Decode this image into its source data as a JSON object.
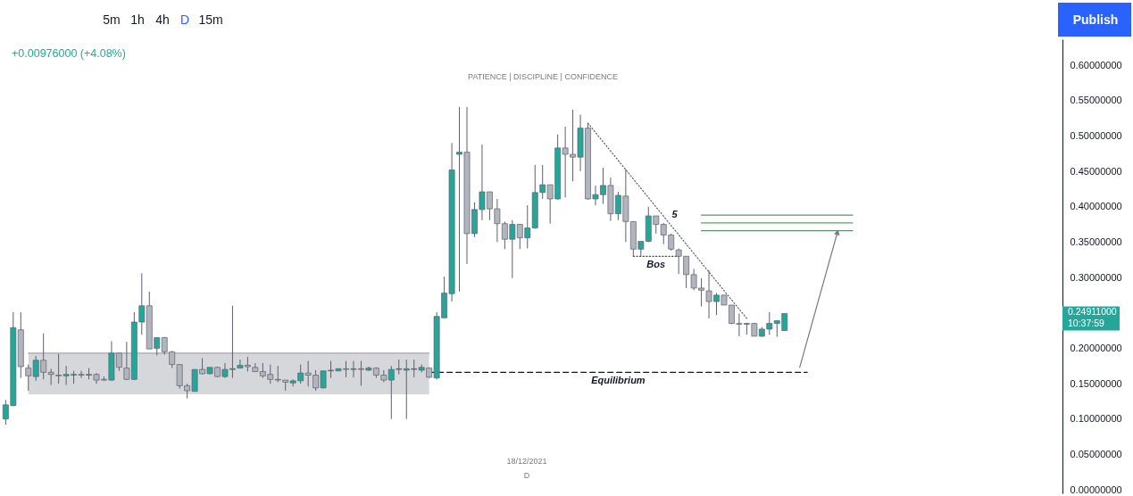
{
  "chart_data": {
    "type": "candlestick",
    "subtitle": "PATIENCE  |  DISCIPLINE  |  CONFIDENCE",
    "categories": [
      null,
      null,
      null,
      null,
      null,
      null,
      null,
      null,
      null,
      null,
      null,
      null,
      null,
      null,
      null,
      null,
      null,
      null,
      null,
      null,
      null,
      null,
      null,
      null,
      null,
      null,
      null,
      null,
      null,
      null,
      null,
      null,
      null,
      null,
      null,
      null,
      null,
      null,
      null,
      null,
      null,
      null,
      null,
      null,
      null,
      null,
      null,
      null,
      null,
      null,
      null,
      null,
      null,
      null,
      null,
      null,
      null,
      null,
      null,
      null,
      null,
      null,
      null,
      null,
      null,
      null,
      null,
      null,
      null,
      null,
      null,
      null,
      null,
      null,
      null,
      null,
      null,
      null,
      null,
      null,
      null,
      null,
      null,
      null,
      null,
      null,
      null,
      null,
      null,
      null,
      null,
      null,
      null,
      null,
      null,
      null,
      null,
      null,
      null,
      null,
      null,
      null,
      null,
      null,
      null,
      null,
      null,
      null,
      null,
      null,
      null,
      null,
      null,
      null,
      null,
      null,
      null,
      null,
      null,
      null,
      null,
      null,
      null,
      null,
      null,
      null,
      null,
      null,
      null,
      null,
      null,
      null,
      null,
      null,
      null,
      null,
      null,
      null,
      null,
      null
    ],
    "ohlc": [
      [
        0.1,
        0.127,
        0.092,
        0.12
      ],
      [
        0.119,
        0.251,
        0.118,
        0.229
      ],
      [
        0.226,
        0.251,
        0.158,
        0.174
      ],
      [
        0.172,
        0.177,
        0.14,
        0.161
      ],
      [
        0.16,
        0.189,
        0.154,
        0.183
      ],
      [
        0.183,
        0.221,
        0.156,
        0.166
      ],
      [
        0.166,
        0.171,
        0.148,
        0.163
      ],
      [
        0.162,
        0.192,
        0.15,
        0.161
      ],
      [
        0.161,
        0.175,
        0.148,
        0.163
      ],
      [
        0.162,
        0.168,
        0.15,
        0.163
      ],
      [
        0.163,
        0.168,
        0.158,
        0.162
      ],
      [
        0.162,
        0.172,
        0.156,
        0.163
      ],
      [
        0.163,
        0.165,
        0.15,
        0.155
      ],
      [
        0.156,
        0.16,
        0.154,
        0.155
      ],
      [
        0.155,
        0.21,
        0.154,
        0.193
      ],
      [
        0.193,
        0.193,
        0.168,
        0.173
      ],
      [
        0.172,
        0.209,
        0.155,
        0.156
      ],
      [
        0.156,
        0.251,
        0.155,
        0.237
      ],
      [
        0.237,
        0.306,
        0.219,
        0.26
      ],
      [
        0.26,
        0.28,
        0.199,
        0.199
      ],
      [
        0.2,
        0.215,
        0.19,
        0.215
      ],
      [
        0.215,
        0.216,
        0.191,
        0.195
      ],
      [
        0.195,
        0.196,
        0.172,
        0.177
      ],
      [
        0.177,
        0.177,
        0.143,
        0.147
      ],
      [
        0.147,
        0.15,
        0.129,
        0.14
      ],
      [
        0.139,
        0.17,
        0.139,
        0.17
      ],
      [
        0.17,
        0.186,
        0.163,
        0.164
      ],
      [
        0.164,
        0.173,
        0.163,
        0.173
      ],
      [
        0.173,
        0.174,
        0.159,
        0.16
      ],
      [
        0.16,
        0.179,
        0.158,
        0.17
      ],
      [
        0.17,
        0.26,
        0.158,
        0.171
      ],
      [
        0.172,
        0.184,
        0.172,
        0.176
      ],
      [
        0.176,
        0.188,
        0.167,
        0.174
      ],
      [
        0.173,
        0.179,
        0.167,
        0.167
      ],
      [
        0.167,
        0.179,
        0.158,
        0.161
      ],
      [
        0.163,
        0.177,
        0.15,
        0.156
      ],
      [
        0.156,
        0.175,
        0.152,
        0.155
      ],
      [
        0.155,
        0.155,
        0.14,
        0.152
      ],
      [
        0.151,
        0.156,
        0.146,
        0.154
      ],
      [
        0.154,
        0.177,
        0.15,
        0.165
      ],
      [
        0.165,
        0.182,
        0.146,
        0.162
      ],
      [
        0.162,
        0.169,
        0.14,
        0.144
      ],
      [
        0.144,
        0.168,
        0.143,
        0.168
      ],
      [
        0.168,
        0.182,
        0.158,
        0.169
      ],
      [
        0.168,
        0.172,
        0.168,
        0.171
      ],
      [
        0.171,
        0.182,
        0.159,
        0.17
      ],
      [
        0.17,
        0.182,
        0.159,
        0.171
      ],
      [
        0.171,
        0.182,
        0.147,
        0.17
      ],
      [
        0.169,
        0.174,
        0.168,
        0.172
      ],
      [
        0.172,
        0.173,
        0.158,
        0.162
      ],
      [
        0.162,
        0.169,
        0.152,
        0.155
      ],
      [
        0.155,
        0.175,
        0.1,
        0.17
      ],
      [
        0.17,
        0.184,
        0.163,
        0.171
      ],
      [
        0.169,
        0.184,
        0.1,
        0.171
      ],
      [
        0.17,
        0.184,
        0.159,
        0.171
      ],
      [
        0.169,
        0.177,
        0.166,
        0.173
      ],
      [
        0.172,
        0.173,
        0.158,
        0.159
      ],
      [
        0.158,
        0.251,
        0.156,
        0.245
      ],
      [
        0.243,
        0.301,
        0.243,
        0.278
      ],
      [
        0.277,
        0.49,
        0.266,
        0.452
      ],
      [
        0.474,
        0.541,
        0.28,
        0.477
      ],
      [
        0.477,
        0.541,
        0.319,
        0.362
      ],
      [
        0.362,
        0.406,
        0.357,
        0.396
      ],
      [
        0.396,
        0.488,
        0.381,
        0.421
      ],
      [
        0.421,
        0.421,
        0.381,
        0.397
      ],
      [
        0.397,
        0.411,
        0.35,
        0.376
      ],
      [
        0.376,
        0.379,
        0.34,
        0.354
      ],
      [
        0.354,
        0.381,
        0.299,
        0.375
      ],
      [
        0.375,
        0.375,
        0.34,
        0.356
      ],
      [
        0.356,
        0.402,
        0.341,
        0.37
      ],
      [
        0.37,
        0.459,
        0.369,
        0.42
      ],
      [
        0.42,
        0.459,
        0.411,
        0.431
      ],
      [
        0.431,
        0.431,
        0.376,
        0.411
      ],
      [
        0.411,
        0.502,
        0.41,
        0.483
      ],
      [
        0.483,
        0.513,
        0.413,
        0.474
      ],
      [
        0.474,
        0.537,
        0.436,
        0.47
      ],
      [
        0.47,
        0.53,
        0.45,
        0.511
      ],
      [
        0.511,
        0.518,
        0.41,
        0.411
      ],
      [
        0.411,
        0.43,
        0.402,
        0.417
      ],
      [
        0.417,
        0.455,
        0.404,
        0.43
      ],
      [
        0.43,
        0.441,
        0.38,
        0.39
      ],
      [
        0.39,
        0.421,
        0.381,
        0.416
      ],
      [
        0.415,
        0.453,
        0.35,
        0.379
      ],
      [
        0.379,
        0.379,
        0.33,
        0.34
      ],
      [
        0.34,
        0.351,
        0.33,
        0.351
      ],
      [
        0.351,
        0.4,
        0.35,
        0.387
      ],
      [
        0.387,
        0.387,
        0.362,
        0.375
      ],
      [
        0.375,
        0.377,
        0.347,
        0.36
      ],
      [
        0.36,
        0.362,
        0.338,
        0.34
      ],
      [
        0.339,
        0.341,
        0.305,
        0.33
      ],
      [
        0.33,
        0.33,
        0.285,
        0.304
      ],
      [
        0.304,
        0.312,
        0.282,
        0.285
      ],
      [
        0.285,
        0.299,
        0.259,
        0.282
      ],
      [
        0.281,
        0.31,
        0.242,
        0.266
      ],
      [
        0.266,
        0.278,
        0.247,
        0.275
      ],
      [
        0.275,
        0.275,
        0.261,
        0.261
      ],
      [
        0.261,
        0.261,
        0.234,
        0.235
      ],
      [
        0.235,
        0.249,
        0.217,
        0.234
      ],
      [
        0.234,
        0.236,
        0.219,
        0.235
      ],
      [
        0.235,
        0.236,
        0.217,
        0.217
      ],
      [
        0.217,
        0.23,
        0.216,
        0.227
      ],
      [
        0.227,
        0.251,
        0.219,
        0.235
      ],
      [
        0.235,
        0.239,
        0.216,
        0.239
      ],
      [
        0.225,
        0.24911,
        0.225,
        0.24911
      ],
      null,
      null,
      null,
      null,
      null,
      null,
      null,
      null,
      null,
      null,
      null,
      null,
      null,
      null,
      null,
      null,
      null,
      null,
      null,
      null,
      null,
      null,
      null,
      null,
      null,
      null,
      null,
      null,
      null,
      null,
      null,
      null,
      null,
      null,
      null,
      null
    ],
    "colors": [
      "#26a69a",
      "#26a69a",
      "#b2b5be",
      "#b2b5be",
      "#26a69a",
      "#b2b5be",
      "#b2b5be",
      "#b2b5be",
      "#26a69a",
      "#26a69a",
      "#b2b5be",
      "#26a69a",
      "#b2b5be",
      "#b2b5be",
      "#26a69a",
      "#b2b5be",
      "#b2b5be",
      "#26a69a",
      "#26a69a",
      "#b2b5be",
      "#26a69a",
      "#b2b5be",
      "#b2b5be",
      "#b2b5be",
      "#b2b5be",
      "#26a69a",
      "#b2b5be",
      "#26a69a",
      "#b2b5be",
      "#26a69a",
      "#26a69a",
      "#26a69a",
      "#b2b5be",
      "#b2b5be",
      "#b2b5be",
      "#b2b5be",
      "#b2b5be",
      "#b2b5be",
      "#26a69a",
      "#26a69a",
      "#b2b5be",
      "#b2b5be",
      "#26a69a",
      "#26a69a",
      "#26a69a",
      "#b2b5be",
      "#26a69a",
      "#b2b5be",
      "#26a69a",
      "#b2b5be",
      "#b2b5be",
      "#26a69a",
      "#26a69a",
      "#26a69a",
      "#26a69a",
      "#26a69a",
      "#b2b5be",
      "#26a69a",
      "#26a69a",
      "#26a69a",
      "#26a69a",
      "#b2b5be",
      "#26a69a",
      "#26a69a",
      "#b2b5be",
      "#b2b5be",
      "#b2b5be",
      "#26a69a",
      "#b2b5be",
      "#26a69a",
      "#26a69a",
      "#26a69a",
      "#b2b5be",
      "#26a69a",
      "#b2b5be",
      "#b2b5be",
      "#26a69a",
      "#b2b5be",
      "#26a69a",
      "#26a69a",
      "#b2b5be",
      "#26a69a",
      "#b2b5be",
      "#b2b5be",
      "#26a69a",
      "#26a69a",
      "#b2b5be",
      "#b2b5be",
      "#b2b5be",
      "#b2b5be",
      "#b2b5be",
      "#b2b5be",
      "#b2b5be",
      "#b2b5be",
      "#26a69a",
      "#b2b5be",
      "#b2b5be",
      "#b2b5be",
      "#26a69a",
      "#b2b5be",
      "#26a69a",
      "#26a69a",
      "#26a69a",
      "#26a69a",
      null,
      null,
      null,
      null,
      null,
      null,
      null,
      null,
      null,
      null,
      null,
      null,
      null,
      null,
      null,
      null,
      null,
      null,
      null,
      null,
      null,
      null,
      null,
      null,
      null,
      null,
      null,
      null,
      null,
      null,
      null,
      null,
      null,
      null,
      null,
      null
    ],
    "color": "#5d606b",
    "ylim": [
      -0.005,
      0.6366
    ],
    "yticks": [
      {
        "value": 0.6,
        "label": "0.60000000"
      },
      {
        "value": 0.55,
        "label": "0.55000000"
      },
      {
        "value": 0.5,
        "label": "0.50000000"
      },
      {
        "value": 0.45,
        "label": "0.45000000"
      },
      {
        "value": 0.4,
        "label": "0.40000000"
      },
      {
        "value": 0.35,
        "label": "0.35000000"
      },
      {
        "value": 0.3,
        "label": "0.30000000"
      },
      {
        "value": 0.2,
        "label": "0.20000000"
      },
      {
        "value": 0.15,
        "label": "0.15000000"
      },
      {
        "value": 0.1,
        "label": "0.10000000"
      },
      {
        "value": 0.05,
        "label": "0.05000000"
      },
      {
        "value": 0,
        "label": "0.00000000"
      }
    ],
    "tick_labels": "y",
    "series": [
      {
        "type": "line",
        "color": "#a3a6af",
        "line_style": "solid",
        "values": [
          null,
          null,
          null,
          0.193,
          null,
          null,
          null,
          null,
          null,
          null,
          null,
          null,
          null,
          null,
          null,
          null,
          null,
          null,
          null,
          null,
          null,
          null,
          null,
          null,
          null,
          null,
          null,
          null,
          null,
          null,
          null,
          null,
          null,
          null,
          null,
          null,
          null,
          null,
          null,
          null,
          null,
          null,
          null,
          null,
          null,
          null,
          null,
          null,
          null,
          null,
          null,
          null,
          null,
          null,
          null,
          null,
          0.193,
          null,
          null,
          null,
          null,
          null,
          null,
          null,
          null,
          null,
          null,
          null,
          null,
          null,
          null,
          null,
          null,
          null,
          null,
          null,
          null,
          null,
          null,
          null,
          null,
          null,
          null,
          null,
          null,
          null,
          null,
          null,
          null,
          null,
          null,
          null,
          null,
          null,
          null,
          null,
          null,
          null,
          null,
          null,
          null,
          null,
          null,
          null,
          null,
          null,
          null,
          null,
          null,
          null,
          null,
          null,
          null,
          null,
          null,
          null,
          null,
          null,
          null,
          null,
          null,
          null,
          null,
          null,
          null,
          null,
          null,
          null,
          null,
          null,
          null,
          null,
          null,
          null,
          null,
          null,
          null,
          null,
          null,
          null
        ],
        "upper": [
          null,
          null,
          null,
          0.193,
          null,
          null,
          null,
          null,
          null,
          null,
          null,
          null,
          null,
          null,
          null,
          null,
          null,
          null,
          null,
          null,
          null,
          null,
          null,
          null,
          null,
          null,
          null,
          null,
          null,
          null,
          null,
          null,
          null,
          null,
          null,
          null,
          null,
          null,
          null,
          null,
          null,
          null,
          null,
          null,
          null,
          null,
          null,
          null,
          null,
          null,
          null,
          null,
          null,
          null,
          null,
          null,
          0.193,
          null,
          null,
          null,
          null,
          null,
          null,
          null,
          null,
          null,
          null,
          null,
          null,
          null,
          null,
          null,
          null,
          null,
          null,
          null,
          null,
          null,
          null,
          null,
          null,
          null,
          null,
          null,
          null,
          null,
          null,
          null,
          null,
          null,
          null,
          null,
          null,
          null,
          null,
          null,
          null,
          null,
          null,
          null,
          null,
          null,
          null,
          null,
          null,
          null,
          null,
          null,
          null,
          null,
          null,
          null,
          null,
          null,
          null,
          null,
          null,
          null,
          null,
          null,
          null,
          null,
          null,
          null,
          null,
          null,
          null,
          null,
          null,
          null,
          null,
          null,
          null,
          null,
          null,
          null,
          null,
          null,
          null,
          null
        ],
        "lower": [
          null,
          null,
          null,
          0.135,
          null,
          null,
          null,
          null,
          null,
          null,
          null,
          null,
          null,
          null,
          null,
          null,
          null,
          null,
          null,
          null,
          null,
          null,
          null,
          null,
          null,
          null,
          null,
          null,
          null,
          null,
          null,
          null,
          null,
          null,
          null,
          null,
          null,
          null,
          null,
          null,
          null,
          null,
          null,
          null,
          null,
          null,
          null,
          null,
          null,
          null,
          null,
          null,
          null,
          null,
          null,
          null,
          0.135,
          null,
          null,
          null,
          null,
          null,
          null,
          null,
          null,
          null,
          null,
          null,
          null,
          null,
          null,
          null,
          null,
          null,
          null,
          null,
          null,
          null,
          null,
          null,
          null,
          null,
          null,
          null,
          null,
          null,
          null,
          null,
          null,
          null,
          null,
          null,
          null,
          null,
          null,
          null,
          null,
          null,
          null,
          null,
          null,
          null,
          null,
          null,
          null,
          null,
          null,
          null,
          null,
          null,
          null,
          null,
          null,
          null,
          null,
          null,
          null,
          null,
          null,
          null,
          null,
          null,
          null,
          null,
          null,
          null,
          null,
          null,
          null,
          null,
          null,
          null,
          null,
          null,
          null,
          null,
          null,
          null,
          null,
          null
        ]
      },
      {
        "type": "line",
        "name": "Equilibrium",
        "color": "#131722",
        "line_style": "dashed",
        "values": [
          null,
          null,
          null,
          null,
          null,
          null,
          null,
          null,
          null,
          null,
          null,
          null,
          null,
          null,
          null,
          null,
          null,
          null,
          null,
          null,
          null,
          null,
          null,
          null,
          null,
          null,
          null,
          null,
          null,
          null,
          null,
          null,
          null,
          null,
          null,
          null,
          null,
          null,
          null,
          null,
          null,
          null,
          null,
          null,
          null,
          null,
          null,
          null,
          null,
          null,
          null,
          null,
          null,
          null,
          null,
          null,
          0.166,
          null,
          null,
          null,
          null,
          null,
          null,
          null,
          null,
          null,
          null,
          null,
          null,
          null,
          null,
          null,
          null,
          null,
          null,
          null,
          null,
          null,
          null,
          null,
          null,
          null,
          null,
          null,
          null,
          null,
          null,
          null,
          null,
          null,
          null,
          null,
          null,
          null,
          null,
          null,
          null,
          null,
          null,
          null,
          null,
          null,
          null,
          null,
          null,
          null,
          0.166,
          null,
          null,
          null,
          null,
          null,
          null,
          null,
          null,
          null,
          null,
          null,
          null,
          null,
          null,
          null,
          null,
          null,
          null,
          null,
          null,
          null,
          null,
          null,
          null,
          null,
          null,
          null,
          null,
          null,
          null,
          null,
          null,
          null
        ]
      },
      {
        "type": "line",
        "name": "5",
        "color": "#5d606b",
        "line_style": "dotted",
        "values": [
          null,
          null,
          null,
          null,
          null,
          null,
          null,
          null,
          null,
          null,
          null,
          null,
          null,
          null,
          null,
          null,
          null,
          null,
          null,
          null,
          null,
          null,
          null,
          null,
          null,
          null,
          null,
          null,
          null,
          null,
          null,
          null,
          null,
          null,
          null,
          null,
          null,
          null,
          null,
          null,
          null,
          null,
          null,
          null,
          null,
          null,
          null,
          null,
          null,
          null,
          null,
          null,
          null,
          null,
          null,
          null,
          null,
          null,
          null,
          null,
          null,
          null,
          null,
          null,
          null,
          null,
          null,
          null,
          null,
          null,
          null,
          null,
          null,
          null,
          null,
          null,
          null,
          0.518,
          null,
          null,
          null,
          null,
          null,
          null,
          null,
          null,
          null,
          null,
          null,
          null,
          null,
          null,
          null,
          null,
          null,
          null,
          null,
          null,
          0.242,
          null,
          null,
          null,
          null,
          null,
          null,
          null,
          null,
          null,
          null,
          null,
          null,
          null,
          null,
          null,
          null,
          null,
          null,
          null,
          null,
          null,
          null,
          null,
          null,
          null,
          null,
          null,
          null,
          null,
          null,
          null,
          null,
          null,
          null,
          null,
          null,
          null,
          null,
          null,
          null,
          null
        ]
      },
      {
        "type": "line",
        "name": "Bos",
        "color": "#131722",
        "line_style": "dotted",
        "values": [
          null,
          null,
          null,
          null,
          null,
          null,
          null,
          null,
          null,
          null,
          null,
          null,
          null,
          null,
          null,
          null,
          null,
          null,
          null,
          null,
          null,
          null,
          null,
          null,
          null,
          null,
          null,
          null,
          null,
          null,
          null,
          null,
          null,
          null,
          null,
          null,
          null,
          null,
          null,
          null,
          null,
          null,
          null,
          null,
          null,
          null,
          null,
          null,
          null,
          null,
          null,
          null,
          null,
          null,
          null,
          null,
          null,
          null,
          null,
          null,
          null,
          null,
          null,
          null,
          null,
          null,
          null,
          null,
          null,
          null,
          null,
          null,
          null,
          null,
          null,
          null,
          null,
          null,
          null,
          null,
          null,
          null,
          null,
          0.33,
          null,
          null,
          null,
          null,
          null,
          0.33,
          null,
          null,
          null,
          null,
          null,
          null,
          null,
          null,
          null,
          null,
          null,
          null,
          null,
          null,
          null,
          null,
          null,
          null,
          null,
          null,
          null,
          null,
          null,
          null,
          null,
          null,
          null,
          null,
          null,
          null,
          null,
          null,
          null,
          null,
          null,
          null,
          null,
          null,
          null,
          null,
          null,
          null,
          null,
          null,
          null,
          null,
          null,
          null,
          null,
          null
        ]
      },
      {
        "type": "line",
        "color": "#5f8f73",
        "line_style": "solid",
        "values": [
          null,
          null,
          null,
          null,
          null,
          null,
          null,
          null,
          null,
          null,
          null,
          null,
          null,
          null,
          null,
          null,
          null,
          null,
          null,
          null,
          null,
          null,
          null,
          null,
          null,
          null,
          null,
          null,
          null,
          null,
          null,
          null,
          null,
          null,
          null,
          null,
          null,
          null,
          null,
          null,
          null,
          null,
          null,
          null,
          null,
          null,
          null,
          null,
          null,
          null,
          null,
          null,
          null,
          null,
          null,
          null,
          null,
          null,
          null,
          null,
          null,
          null,
          null,
          null,
          null,
          null,
          null,
          null,
          null,
          null,
          null,
          null,
          null,
          null,
          null,
          null,
          null,
          null,
          null,
          null,
          null,
          null,
          null,
          null,
          null,
          null,
          null,
          null,
          null,
          null,
          null,
          null,
          0.388,
          null,
          null,
          null,
          null,
          null,
          null,
          null,
          null,
          null,
          null,
          null,
          null,
          null,
          null,
          null,
          null,
          null,
          null,
          null,
          0.388,
          null,
          null,
          null,
          null,
          null,
          null,
          null,
          null,
          null,
          null,
          null,
          null,
          null,
          null,
          null,
          null,
          null,
          null,
          null,
          null,
          null,
          null,
          null,
          null,
          null,
          null,
          null
        ]
      },
      {
        "type": "line",
        "color": "#4caf50",
        "line_style": "solid",
        "values": [
          null,
          null,
          null,
          null,
          null,
          null,
          null,
          null,
          null,
          null,
          null,
          null,
          null,
          null,
          null,
          null,
          null,
          null,
          null,
          null,
          null,
          null,
          null,
          null,
          null,
          null,
          null,
          null,
          null,
          null,
          null,
          null,
          null,
          null,
          null,
          null,
          null,
          null,
          null,
          null,
          null,
          null,
          null,
          null,
          null,
          null,
          null,
          null,
          null,
          null,
          null,
          null,
          null,
          null,
          null,
          null,
          null,
          null,
          null,
          null,
          null,
          null,
          null,
          null,
          null,
          null,
          null,
          null,
          null,
          null,
          null,
          null,
          null,
          null,
          null,
          null,
          null,
          null,
          null,
          null,
          null,
          null,
          null,
          null,
          null,
          null,
          null,
          null,
          null,
          null,
          null,
          null,
          0.377,
          null,
          null,
          null,
          null,
          null,
          null,
          null,
          null,
          null,
          null,
          null,
          null,
          null,
          null,
          null,
          null,
          null,
          null,
          null,
          0.377,
          null,
          null,
          null,
          null,
          null,
          null,
          null,
          null,
          null,
          null,
          null,
          null,
          null,
          null,
          null,
          null,
          null,
          null,
          null,
          null,
          null,
          null,
          null,
          null,
          null,
          null,
          null
        ]
      },
      {
        "type": "line",
        "color": "#5f8f73",
        "line_style": "solid",
        "values": [
          null,
          null,
          null,
          null,
          null,
          null,
          null,
          null,
          null,
          null,
          null,
          null,
          null,
          null,
          null,
          null,
          null,
          null,
          null,
          null,
          null,
          null,
          null,
          null,
          null,
          null,
          null,
          null,
          null,
          null,
          null,
          null,
          null,
          null,
          null,
          null,
          null,
          null,
          null,
          null,
          null,
          null,
          null,
          null,
          null,
          null,
          null,
          null,
          null,
          null,
          null,
          null,
          null,
          null,
          null,
          null,
          null,
          null,
          null,
          null,
          null,
          null,
          null,
          null,
          null,
          null,
          null,
          null,
          null,
          null,
          null,
          null,
          null,
          null,
          null,
          null,
          null,
          null,
          null,
          null,
          null,
          null,
          null,
          null,
          null,
          null,
          null,
          null,
          null,
          null,
          null,
          null,
          0.366,
          null,
          null,
          null,
          null,
          null,
          null,
          null,
          null,
          null,
          null,
          null,
          null,
          null,
          null,
          null,
          null,
          null,
          null,
          null,
          0.366,
          null,
          null,
          null,
          null,
          null,
          null,
          null,
          null,
          null,
          null,
          null,
          null,
          null,
          null,
          null,
          null,
          null,
          null,
          null,
          null,
          null,
          null,
          null,
          null,
          null,
          null,
          null
        ]
      },
      {
        "type": "line",
        "color": "#787b86",
        "line_style": "solid",
        "marker": "triangle",
        "values": [
          null,
          null,
          null,
          null,
          null,
          null,
          null,
          null,
          null,
          null,
          null,
          null,
          null,
          null,
          null,
          null,
          null,
          null,
          null,
          null,
          null,
          null,
          null,
          null,
          null,
          null,
          null,
          null,
          null,
          null,
          null,
          null,
          null,
          null,
          null,
          null,
          null,
          null,
          null,
          null,
          null,
          null,
          null,
          null,
          null,
          null,
          null,
          null,
          null,
          null,
          null,
          null,
          null,
          null,
          null,
          null,
          null,
          null,
          null,
          null,
          null,
          null,
          null,
          null,
          null,
          null,
          null,
          null,
          null,
          null,
          null,
          null,
          null,
          null,
          null,
          null,
          null,
          null,
          null,
          null,
          null,
          null,
          null,
          null,
          null,
          null,
          null,
          null,
          null,
          null,
          null,
          null,
          null,
          null,
          null,
          null,
          null,
          null,
          null,
          null,
          null,
          null,
          null,
          null,
          null,
          0.173,
          null,
          null,
          null,
          null,
          0.364,
          null,
          null,
          null,
          null,
          null,
          null,
          null,
          null,
          null,
          null,
          null,
          null,
          null,
          null,
          null,
          null,
          null,
          null,
          null,
          null,
          null,
          null,
          null,
          null,
          null,
          null,
          null,
          null,
          null
        ]
      }
    ],
    "annotations": [
      "+0.00976000 (+4.08%)",
      "0.24911000\n10:37:59",
      "18/12/2021",
      "D",
      "5m",
      "1h",
      "4h",
      "D",
      "15m",
      "Publish"
    ]
  }
}
